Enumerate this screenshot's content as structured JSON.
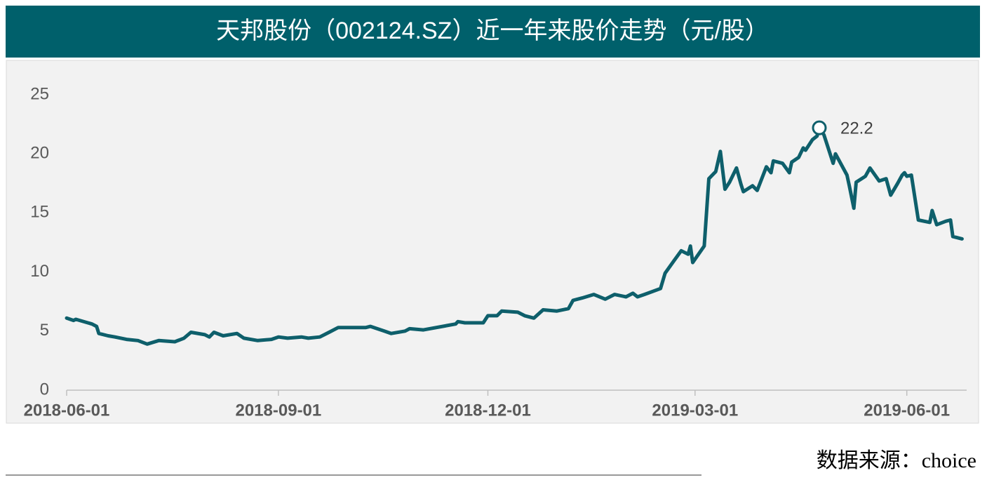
{
  "chart_data": {
    "type": "line",
    "title": "天邦股份（002124.SZ）近一年来股价走势（元/股）",
    "source": "数据来源：choice",
    "x": [
      "2018-06-01",
      "2018-06-04",
      "2018-06-05",
      "2018-06-12",
      "2018-06-14",
      "2018-06-15",
      "2018-06-19",
      "2018-06-22",
      "2018-06-27",
      "2018-07-02",
      "2018-07-06",
      "2018-07-11",
      "2018-07-18",
      "2018-07-22",
      "2018-07-25",
      "2018-07-31",
      "2018-08-02",
      "2018-08-04",
      "2018-08-08",
      "2018-08-14",
      "2018-08-17",
      "2018-08-23",
      "2018-08-29",
      "2018-09-01",
      "2018-09-05",
      "2018-09-11",
      "2018-09-14",
      "2018-09-19",
      "2018-09-23",
      "2018-09-27",
      "2018-10-09",
      "2018-10-11",
      "2018-10-17",
      "2018-10-20",
      "2018-10-26",
      "2018-10-28",
      "2018-11-03",
      "2018-11-17",
      "2018-11-18",
      "2018-11-21",
      "2018-11-29",
      "2018-12-01",
      "2018-12-05",
      "2018-12-07",
      "2018-12-14",
      "2018-12-17",
      "2018-12-21",
      "2018-12-25",
      "2018-12-31",
      "2019-01-05",
      "2019-01-07",
      "2019-01-11",
      "2019-01-16",
      "2019-01-21",
      "2019-01-25",
      "2019-01-30",
      "2019-02-02",
      "2019-02-04",
      "2019-02-07",
      "2019-02-14",
      "2019-02-16",
      "2019-02-20",
      "2019-02-23",
      "2019-02-26",
      "2019-02-27",
      "2019-02-28",
      "2019-03-05",
      "2019-03-07",
      "2019-03-10",
      "2019-03-12",
      "2019-03-14",
      "2019-03-16",
      "2019-03-19",
      "2019-03-21",
      "2019-03-22",
      "2019-03-26",
      "2019-03-28",
      "2019-04-01",
      "2019-04-03",
      "2019-04-04",
      "2019-04-08",
      "2019-04-11",
      "2019-04-12",
      "2019-04-15",
      "2019-04-17",
      "2019-04-18",
      "2019-04-21",
      "2019-04-23",
      "2019-04-24",
      "2019-04-26",
      "2019-04-30",
      "2019-05-01",
      "2019-05-06",
      "2019-05-07",
      "2019-05-09",
      "2019-05-10",
      "2019-05-14",
      "2019-05-16",
      "2019-05-20",
      "2019-05-23",
      "2019-05-25",
      "2019-05-28",
      "2019-05-30",
      "2019-05-31",
      "2019-06-01",
      "2019-06-03",
      "2019-06-06",
      "2019-06-11",
      "2019-06-12",
      "2019-06-14",
      "2019-06-18",
      "2019-06-20",
      "2019-06-21",
      "2019-06-25"
    ],
    "series": [
      {
        "name": "天邦股份",
        "color": "#0e5f6b",
        "values": [
          6.1,
          5.9,
          6.0,
          5.6,
          5.4,
          4.8,
          4.6,
          4.5,
          4.3,
          4.2,
          3.9,
          4.2,
          4.1,
          4.4,
          4.9,
          4.7,
          4.5,
          4.9,
          4.6,
          4.8,
          4.4,
          4.2,
          4.3,
          4.5,
          4.4,
          4.5,
          4.4,
          4.5,
          4.9,
          5.3,
          5.3,
          5.4,
          5.0,
          4.8,
          5.0,
          5.2,
          5.1,
          5.6,
          5.8,
          5.7,
          5.7,
          6.3,
          6.3,
          6.7,
          6.6,
          6.3,
          6.1,
          6.8,
          6.7,
          6.9,
          7.6,
          7.8,
          8.1,
          7.7,
          8.1,
          7.9,
          8.2,
          7.9,
          8.1,
          8.6,
          9.9,
          11.0,
          11.8,
          11.5,
          12.2,
          10.8,
          12.2,
          17.9,
          18.5,
          20.2,
          17.0,
          17.6,
          18.8,
          17.4,
          16.8,
          17.3,
          16.9,
          18.9,
          18.4,
          19.4,
          19.2,
          18.4,
          19.3,
          19.7,
          20.5,
          20.3,
          21.2,
          21.5,
          22.2,
          21.6,
          19.2,
          20.0,
          18.2,
          17.3,
          15.4,
          17.6,
          18.1,
          18.8,
          17.7,
          17.9,
          16.5,
          17.5,
          18.2,
          18.4,
          18.1,
          18.2,
          14.4,
          14.2,
          15.2,
          14.0,
          14.3,
          14.4,
          13.0,
          12.8
        ]
      }
    ],
    "annotation": {
      "x": "2019-04-24",
      "value": 22.2
    },
    "xlim": [
      "2018-06-01",
      "2019-06-27"
    ],
    "xticks": [
      "2018-06-01",
      "2018-09-01",
      "2018-12-01",
      "2019-03-01",
      "2019-06-01"
    ],
    "ylim": [
      0,
      25
    ],
    "yticks": [
      0,
      5,
      10,
      15,
      20,
      25
    ]
  }
}
